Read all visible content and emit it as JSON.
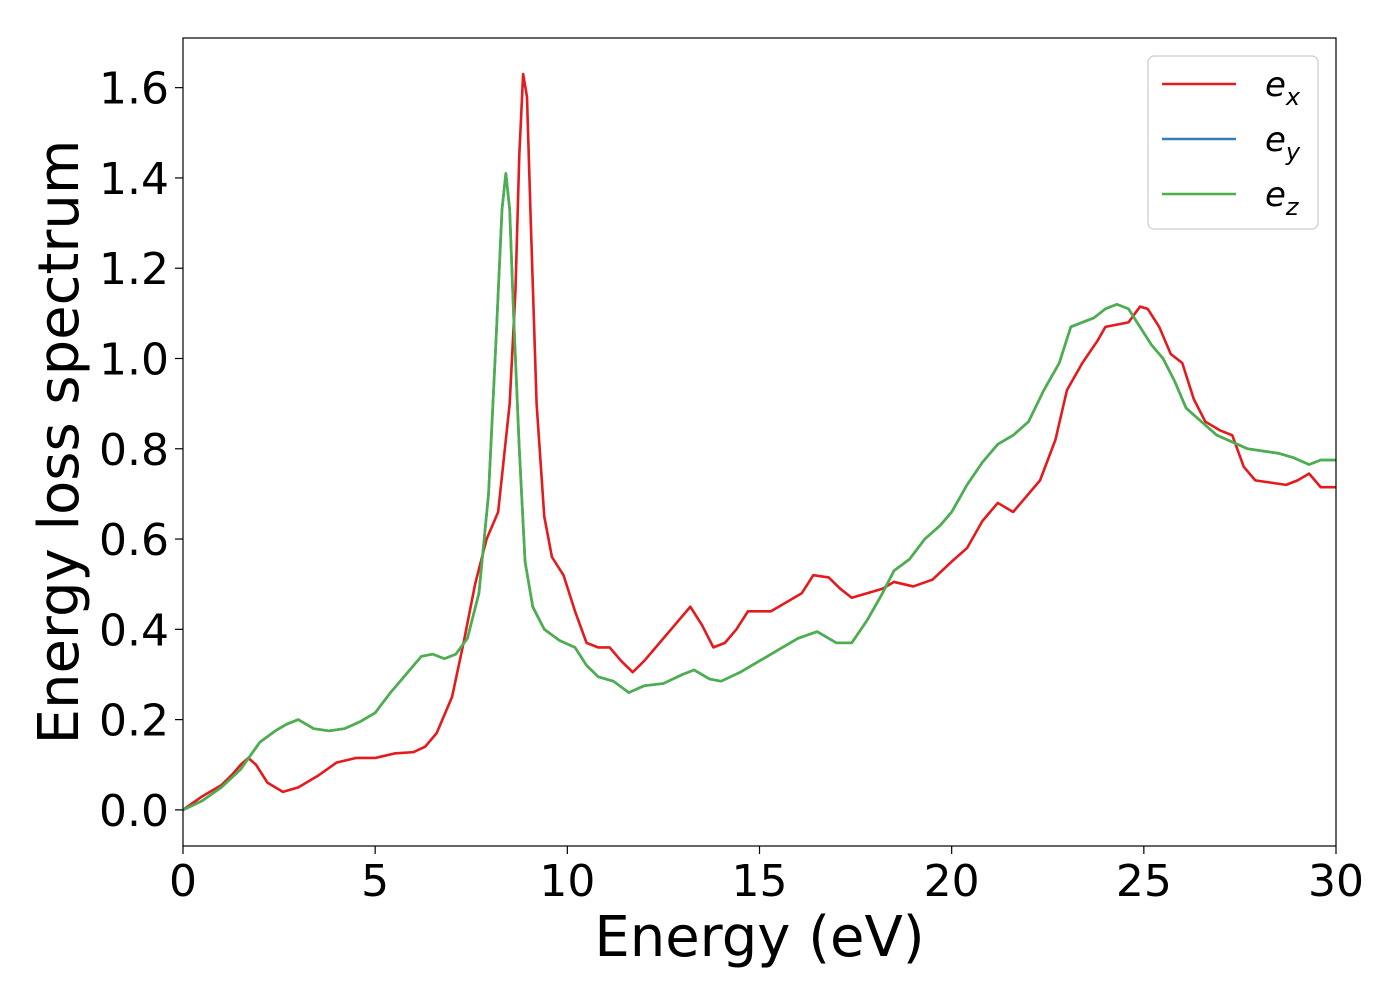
{
  "chart_data": {
    "type": "line",
    "title": "",
    "xlabel": "Energy (eV)",
    "ylabel": "Energy loss spectrum",
    "xlim": [
      0,
      30
    ],
    "ylim": [
      -0.08,
      1.71
    ],
    "xticks": [
      0,
      5,
      10,
      15,
      20,
      25,
      30
    ],
    "yticks": [
      0.0,
      0.2,
      0.4,
      0.6,
      0.8,
      1.0,
      1.2,
      1.4,
      1.6
    ],
    "xtick_labels": [
      "0",
      "5",
      "10",
      "15",
      "20",
      "25",
      "30"
    ],
    "ytick_labels": [
      "0.0",
      "0.2",
      "0.4",
      "0.6",
      "0.8",
      "1.0",
      "1.2",
      "1.4",
      "1.6"
    ],
    "grid": false,
    "legend_position": "top-right",
    "series": [
      {
        "name": "e",
        "subscript": "x",
        "color": "#e41a1c",
        "points": [
          [
            0,
            0
          ],
          [
            0.5,
            0.03
          ],
          [
            1,
            0.055
          ],
          [
            1.3,
            0.08
          ],
          [
            1.5,
            0.1
          ],
          [
            1.7,
            0.115
          ],
          [
            1.9,
            0.1
          ],
          [
            2.2,
            0.06
          ],
          [
            2.6,
            0.04
          ],
          [
            3.0,
            0.05
          ],
          [
            3.5,
            0.075
          ],
          [
            4.0,
            0.105
          ],
          [
            4.5,
            0.115
          ],
          [
            5.0,
            0.115
          ],
          [
            5.5,
            0.125
          ],
          [
            6.0,
            0.128
          ],
          [
            6.3,
            0.14
          ],
          [
            6.6,
            0.17
          ],
          [
            7.0,
            0.25
          ],
          [
            7.3,
            0.37
          ],
          [
            7.6,
            0.5
          ],
          [
            7.9,
            0.6
          ],
          [
            8.2,
            0.66
          ],
          [
            8.5,
            0.9
          ],
          [
            8.65,
            1.15
          ],
          [
            8.75,
            1.45
          ],
          [
            8.85,
            1.63
          ],
          [
            8.95,
            1.58
          ],
          [
            9.05,
            1.3
          ],
          [
            9.2,
            0.9
          ],
          [
            9.4,
            0.65
          ],
          [
            9.6,
            0.56
          ],
          [
            9.9,
            0.52
          ],
          [
            10.2,
            0.44
          ],
          [
            10.5,
            0.37
          ],
          [
            10.8,
            0.36
          ],
          [
            11.1,
            0.36
          ],
          [
            11.4,
            0.33
          ],
          [
            11.7,
            0.305
          ],
          [
            12.0,
            0.33
          ],
          [
            12.4,
            0.37
          ],
          [
            12.8,
            0.41
          ],
          [
            13.2,
            0.45
          ],
          [
            13.5,
            0.41
          ],
          [
            13.8,
            0.36
          ],
          [
            14.1,
            0.37
          ],
          [
            14.4,
            0.4
          ],
          [
            14.7,
            0.44
          ],
          [
            15.0,
            0.44
          ],
          [
            15.3,
            0.44
          ],
          [
            15.7,
            0.46
          ],
          [
            16.1,
            0.48
          ],
          [
            16.4,
            0.52
          ],
          [
            16.8,
            0.515
          ],
          [
            17.1,
            0.49
          ],
          [
            17.4,
            0.47
          ],
          [
            17.8,
            0.48
          ],
          [
            18.2,
            0.49
          ],
          [
            18.5,
            0.505
          ],
          [
            19.0,
            0.495
          ],
          [
            19.5,
            0.51
          ],
          [
            20.0,
            0.55
          ],
          [
            20.4,
            0.58
          ],
          [
            20.8,
            0.64
          ],
          [
            21.2,
            0.68
          ],
          [
            21.6,
            0.66
          ],
          [
            21.9,
            0.69
          ],
          [
            22.3,
            0.73
          ],
          [
            22.7,
            0.82
          ],
          [
            23.0,
            0.93
          ],
          [
            23.4,
            0.99
          ],
          [
            23.8,
            1.04
          ],
          [
            24.0,
            1.07
          ],
          [
            24.3,
            1.075
          ],
          [
            24.6,
            1.08
          ],
          [
            24.9,
            1.115
          ],
          [
            25.1,
            1.11
          ],
          [
            25.4,
            1.07
          ],
          [
            25.7,
            1.01
          ],
          [
            26.0,
            0.99
          ],
          [
            26.3,
            0.91
          ],
          [
            26.6,
            0.86
          ],
          [
            27.0,
            0.84
          ],
          [
            27.3,
            0.83
          ],
          [
            27.6,
            0.76
          ],
          [
            27.9,
            0.73
          ],
          [
            28.3,
            0.725
          ],
          [
            28.7,
            0.72
          ],
          [
            29.0,
            0.73
          ],
          [
            29.3,
            0.745
          ],
          [
            29.6,
            0.715
          ],
          [
            30.0,
            0.715
          ]
        ]
      },
      {
        "name": "e",
        "subscript": "y",
        "color": "#377eb8",
        "points": [
          [
            0,
            0
          ],
          [
            0.5,
            0.02
          ],
          [
            1,
            0.05
          ],
          [
            1.5,
            0.09
          ],
          [
            2.0,
            0.15
          ],
          [
            2.4,
            0.175
          ],
          [
            2.7,
            0.19
          ],
          [
            3.0,
            0.2
          ],
          [
            3.4,
            0.18
          ],
          [
            3.8,
            0.175
          ],
          [
            4.2,
            0.18
          ],
          [
            4.6,
            0.195
          ],
          [
            5.0,
            0.215
          ],
          [
            5.4,
            0.26
          ],
          [
            5.8,
            0.3
          ],
          [
            6.2,
            0.34
          ],
          [
            6.5,
            0.345
          ],
          [
            6.8,
            0.335
          ],
          [
            7.1,
            0.345
          ],
          [
            7.4,
            0.38
          ],
          [
            7.7,
            0.48
          ],
          [
            7.95,
            0.7
          ],
          [
            8.15,
            1.05
          ],
          [
            8.3,
            1.33
          ],
          [
            8.4,
            1.41
          ],
          [
            8.5,
            1.33
          ],
          [
            8.6,
            1.1
          ],
          [
            8.75,
            0.8
          ],
          [
            8.9,
            0.55
          ],
          [
            9.1,
            0.45
          ],
          [
            9.4,
            0.4
          ],
          [
            9.8,
            0.375
          ],
          [
            10.2,
            0.36
          ],
          [
            10.5,
            0.32
          ],
          [
            10.8,
            0.295
          ],
          [
            11.2,
            0.285
          ],
          [
            11.6,
            0.26
          ],
          [
            12.0,
            0.275
          ],
          [
            12.5,
            0.28
          ],
          [
            13.0,
            0.3
          ],
          [
            13.3,
            0.31
          ],
          [
            13.7,
            0.29
          ],
          [
            14.0,
            0.285
          ],
          [
            14.5,
            0.305
          ],
          [
            15.0,
            0.33
          ],
          [
            15.5,
            0.355
          ],
          [
            16.0,
            0.38
          ],
          [
            16.5,
            0.395
          ],
          [
            17.0,
            0.37
          ],
          [
            17.4,
            0.37
          ],
          [
            17.8,
            0.42
          ],
          [
            18.2,
            0.48
          ],
          [
            18.5,
            0.53
          ],
          [
            18.9,
            0.555
          ],
          [
            19.3,
            0.6
          ],
          [
            19.7,
            0.63
          ],
          [
            20.0,
            0.66
          ],
          [
            20.4,
            0.72
          ],
          [
            20.8,
            0.77
          ],
          [
            21.2,
            0.81
          ],
          [
            21.6,
            0.83
          ],
          [
            22.0,
            0.86
          ],
          [
            22.4,
            0.93
          ],
          [
            22.8,
            0.99
          ],
          [
            23.1,
            1.07
          ],
          [
            23.4,
            1.08
          ],
          [
            23.7,
            1.09
          ],
          [
            24.0,
            1.11
          ],
          [
            24.3,
            1.12
          ],
          [
            24.6,
            1.11
          ],
          [
            24.9,
            1.07
          ],
          [
            25.2,
            1.03
          ],
          [
            25.5,
            1.0
          ],
          [
            25.8,
            0.95
          ],
          [
            26.1,
            0.89
          ],
          [
            26.5,
            0.86
          ],
          [
            26.9,
            0.83
          ],
          [
            27.3,
            0.815
          ],
          [
            27.7,
            0.8
          ],
          [
            28.1,
            0.795
          ],
          [
            28.5,
            0.79
          ],
          [
            28.9,
            0.78
          ],
          [
            29.3,
            0.765
          ],
          [
            29.6,
            0.775
          ],
          [
            30.0,
            0.775
          ]
        ]
      },
      {
        "name": "e",
        "subscript": "z",
        "color": "#4daf4a",
        "points": [
          [
            0,
            0
          ],
          [
            0.5,
            0.02
          ],
          [
            1,
            0.05
          ],
          [
            1.5,
            0.09
          ],
          [
            2.0,
            0.15
          ],
          [
            2.4,
            0.175
          ],
          [
            2.7,
            0.19
          ],
          [
            3.0,
            0.2
          ],
          [
            3.4,
            0.18
          ],
          [
            3.8,
            0.175
          ],
          [
            4.2,
            0.18
          ],
          [
            4.6,
            0.195
          ],
          [
            5.0,
            0.215
          ],
          [
            5.4,
            0.26
          ],
          [
            5.8,
            0.3
          ],
          [
            6.2,
            0.34
          ],
          [
            6.5,
            0.345
          ],
          [
            6.8,
            0.335
          ],
          [
            7.1,
            0.345
          ],
          [
            7.4,
            0.38
          ],
          [
            7.7,
            0.48
          ],
          [
            7.95,
            0.7
          ],
          [
            8.15,
            1.05
          ],
          [
            8.3,
            1.33
          ],
          [
            8.4,
            1.41
          ],
          [
            8.5,
            1.33
          ],
          [
            8.6,
            1.1
          ],
          [
            8.75,
            0.8
          ],
          [
            8.9,
            0.55
          ],
          [
            9.1,
            0.45
          ],
          [
            9.4,
            0.4
          ],
          [
            9.8,
            0.375
          ],
          [
            10.2,
            0.36
          ],
          [
            10.5,
            0.32
          ],
          [
            10.8,
            0.295
          ],
          [
            11.2,
            0.285
          ],
          [
            11.6,
            0.26
          ],
          [
            12.0,
            0.275
          ],
          [
            12.5,
            0.28
          ],
          [
            13.0,
            0.3
          ],
          [
            13.3,
            0.31
          ],
          [
            13.7,
            0.29
          ],
          [
            14.0,
            0.285
          ],
          [
            14.5,
            0.305
          ],
          [
            15.0,
            0.33
          ],
          [
            15.5,
            0.355
          ],
          [
            16.0,
            0.38
          ],
          [
            16.5,
            0.395
          ],
          [
            17.0,
            0.37
          ],
          [
            17.4,
            0.37
          ],
          [
            17.8,
            0.42
          ],
          [
            18.2,
            0.48
          ],
          [
            18.5,
            0.53
          ],
          [
            18.9,
            0.555
          ],
          [
            19.3,
            0.6
          ],
          [
            19.7,
            0.63
          ],
          [
            20.0,
            0.66
          ],
          [
            20.4,
            0.72
          ],
          [
            20.8,
            0.77
          ],
          [
            21.2,
            0.81
          ],
          [
            21.6,
            0.83
          ],
          [
            22.0,
            0.86
          ],
          [
            22.4,
            0.93
          ],
          [
            22.8,
            0.99
          ],
          [
            23.1,
            1.07
          ],
          [
            23.4,
            1.08
          ],
          [
            23.7,
            1.09
          ],
          [
            24.0,
            1.11
          ],
          [
            24.3,
            1.12
          ],
          [
            24.6,
            1.11
          ],
          [
            24.9,
            1.07
          ],
          [
            25.2,
            1.03
          ],
          [
            25.5,
            1.0
          ],
          [
            25.8,
            0.95
          ],
          [
            26.1,
            0.89
          ],
          [
            26.5,
            0.86
          ],
          [
            26.9,
            0.83
          ],
          [
            27.3,
            0.815
          ],
          [
            27.7,
            0.8
          ],
          [
            28.1,
            0.795
          ],
          [
            28.5,
            0.79
          ],
          [
            28.9,
            0.78
          ],
          [
            29.3,
            0.765
          ],
          [
            29.6,
            0.775
          ],
          [
            30.0,
            0.775
          ]
        ]
      }
    ]
  }
}
